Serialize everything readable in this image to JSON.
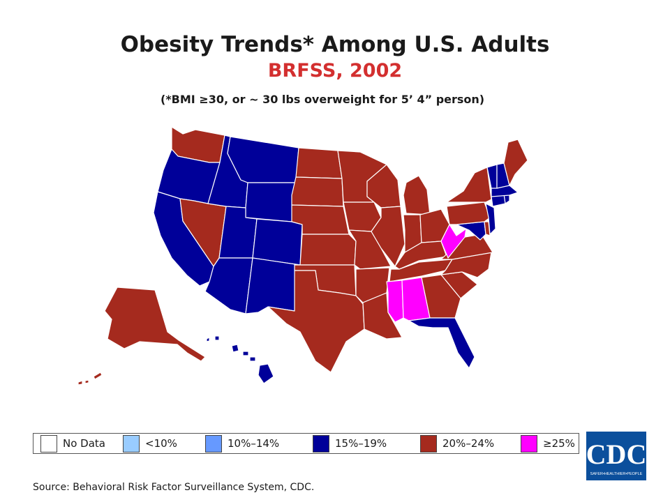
{
  "title": "Obesity Trends* Among U.S. Adults",
  "subtitle": "BRFSS, 2002",
  "note": "(*BMI ≥30, or ~ 30 lbs overweight for 5’ 4” person)",
  "source": "Source: Behavioral Risk Factor Surveillance System, CDC.",
  "colors": {
    "title_accent": "#d32f2f",
    "no_data": "#ffffff",
    "lt10": "#99ccff",
    "10to14": "#6699ff",
    "15to19": "#000099",
    "20to24": "#a52a1e",
    "ge25": "#ff00ff"
  },
  "legend": [
    {
      "label": "No Data",
      "color_key": "no_data"
    },
    {
      "label": "<10%",
      "color_key": "lt10"
    },
    {
      "label": "10%–14%",
      "color_key": "10to14"
    },
    {
      "label": "15%–19%",
      "color_key": "15to19"
    },
    {
      "label": "20%–24%",
      "color_key": "20to24"
    },
    {
      "label": "≥25%",
      "color_key": "ge25"
    }
  ],
  "logo": {
    "text": "CDC",
    "tagline": "SAFER•HEALTHIER•PEOPLE"
  },
  "states": {
    "WA": "20to24",
    "OR": "15to19",
    "CA": "15to19",
    "NV": "20to24",
    "ID": "15to19",
    "MT": "15to19",
    "WY": "15to19",
    "UT": "15to19",
    "CO": "15to19",
    "AZ": "15to19",
    "NM": "15to19",
    "ND": "20to24",
    "SD": "20to24",
    "NE": "20to24",
    "KS": "20to24",
    "OK": "20to24",
    "TX": "20to24",
    "MN": "20to24",
    "IA": "20to24",
    "MO": "20to24",
    "AR": "20to24",
    "LA": "20to24",
    "WI": "20to24",
    "IL": "20to24",
    "MI": "20to24",
    "IN": "20to24",
    "OH": "20to24",
    "KY": "20to24",
    "TN": "20to24",
    "MS": "ge25",
    "AL": "ge25",
    "GA": "20to24",
    "FL": "15to19",
    "SC": "20to24",
    "NC": "20to24",
    "VA": "20to24",
    "WV": "ge25",
    "MD": "15to19",
    "DE": "20to24",
    "PA": "20to24",
    "NJ": "15to19",
    "NY": "20to24",
    "CT": "15to19",
    "RI": "15to19",
    "MA": "15to19",
    "VT": "15to19",
    "NH": "15to19",
    "ME": "20to24",
    "AK": "20to24",
    "HI": "15to19"
  }
}
